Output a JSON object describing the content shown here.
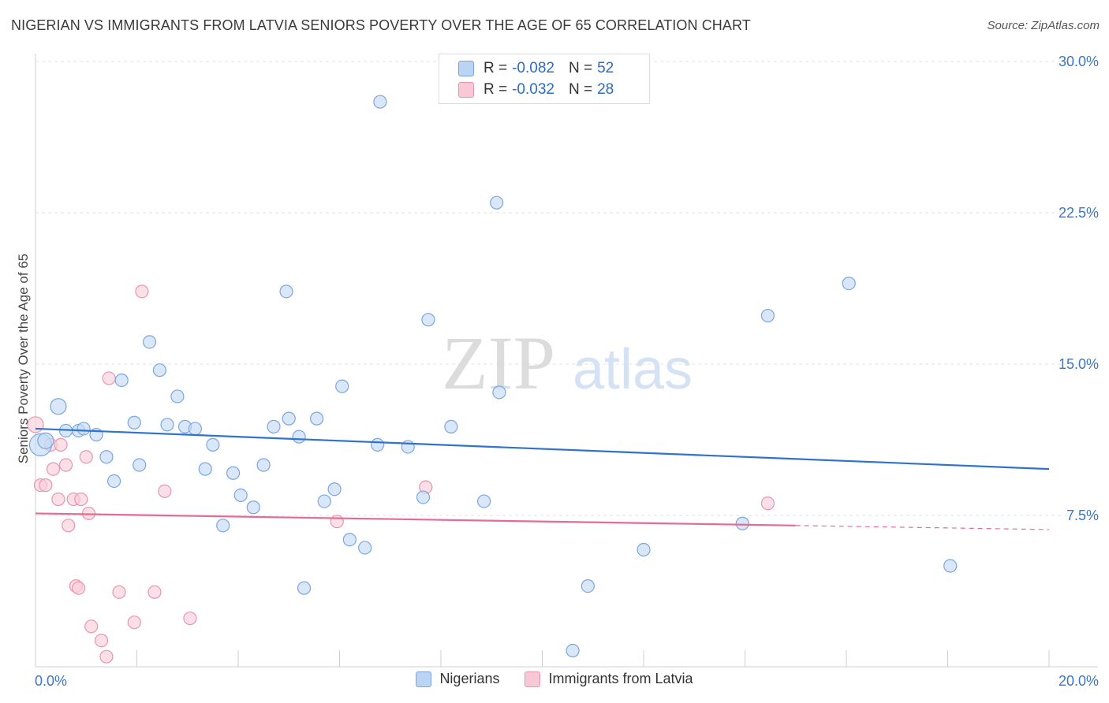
{
  "title": "NIGERIAN VS IMMIGRANTS FROM LATVIA SENIORS POVERTY OVER THE AGE OF 65 CORRELATION CHART",
  "source": "Source: ZipAtlas.com",
  "watermark": {
    "zip": "ZIP",
    "atlas": "atlas"
  },
  "legend": {
    "series": [
      {
        "r_label": "R =",
        "r_value": "-0.082",
        "n_label": "N =",
        "n_value": "52",
        "fill": "#bcd4f4",
        "stroke": "#7aa6e0"
      },
      {
        "r_label": "R =",
        "r_value": "-0.032",
        "n_label": "N =",
        "n_value": "28",
        "fill": "#f9c8d6",
        "stroke": "#eb94ae"
      }
    ]
  },
  "chart_data": {
    "type": "scatter",
    "title": "NIGERIAN VS IMMIGRANTS FROM LATVIA SENIORS POVERTY OVER THE AGE OF 65 CORRELATION CHART",
    "xlabel": "",
    "ylabel": "Seniors Poverty Over the Age of 65",
    "xlim": [
      0,
      20
    ],
    "ylim": [
      0,
      30
    ],
    "x_tick_labels": [
      "0.0%",
      "20.0%"
    ],
    "y_tick_values": [
      7.5,
      15.0,
      22.5,
      30.0
    ],
    "y_tick_labels": [
      "7.5%",
      "15.0%",
      "22.5%",
      "30.0%"
    ],
    "grid": true,
    "series": [
      {
        "name": "Nigerians",
        "color": "#7aa6e0",
        "fill": "#c5daf5",
        "trend_color": "#2f72cf",
        "trend": {
          "x0": 0,
          "y0": 11.8,
          "x1": 20,
          "y1": 9.8,
          "solid_until": 20
        },
        "points": [
          [
            0.1,
            11.0,
            3
          ],
          [
            0.2,
            11.2,
            2
          ],
          [
            0.45,
            12.9,
            2
          ],
          [
            0.6,
            11.7,
            1
          ],
          [
            0.85,
            11.7,
            1
          ],
          [
            0.95,
            11.8,
            1
          ],
          [
            1.2,
            11.5,
            1
          ],
          [
            1.4,
            10.4,
            1
          ],
          [
            1.55,
            9.2,
            1
          ],
          [
            1.7,
            14.2,
            1
          ],
          [
            1.95,
            12.1,
            1
          ],
          [
            2.05,
            10.0,
            1
          ],
          [
            2.25,
            16.1,
            1
          ],
          [
            2.45,
            14.7,
            1
          ],
          [
            2.6,
            12.0,
            1
          ],
          [
            2.8,
            13.4,
            1
          ],
          [
            2.95,
            11.9,
            1
          ],
          [
            3.15,
            11.8,
            1
          ],
          [
            3.35,
            9.8,
            1
          ],
          [
            3.5,
            11.0,
            1
          ],
          [
            3.7,
            7.0,
            1
          ],
          [
            3.9,
            9.6,
            1
          ],
          [
            4.05,
            8.5,
            1
          ],
          [
            4.3,
            7.9,
            1
          ],
          [
            4.5,
            10.0,
            1
          ],
          [
            4.7,
            11.9,
            1
          ],
          [
            4.95,
            18.6,
            1
          ],
          [
            5.0,
            12.3,
            1
          ],
          [
            5.2,
            11.4,
            1
          ],
          [
            5.3,
            3.9,
            1
          ],
          [
            5.55,
            12.3,
            1
          ],
          [
            5.7,
            8.2,
            1
          ],
          [
            5.9,
            8.8,
            1
          ],
          [
            6.05,
            13.9,
            1
          ],
          [
            6.2,
            6.3,
            1
          ],
          [
            6.5,
            5.9,
            1
          ],
          [
            6.75,
            11.0,
            1
          ],
          [
            6.8,
            28.0,
            1
          ],
          [
            7.35,
            10.9,
            1
          ],
          [
            7.65,
            8.4,
            1
          ],
          [
            7.75,
            17.2,
            1
          ],
          [
            8.2,
            11.9,
            1
          ],
          [
            8.85,
            8.2,
            1
          ],
          [
            9.1,
            23.0,
            1
          ],
          [
            9.15,
            13.6,
            1
          ],
          [
            10.6,
            0.8,
            1
          ],
          [
            10.9,
            4.0,
            1
          ],
          [
            12.0,
            5.8,
            1
          ],
          [
            13.95,
            7.1,
            1
          ],
          [
            14.45,
            17.4,
            1
          ],
          [
            16.05,
            19.0,
            1
          ],
          [
            18.05,
            5.0,
            1
          ]
        ]
      },
      {
        "name": "Immigrants from Latvia",
        "color": "#eb94ae",
        "fill": "#f9cfdc",
        "trend_color": "#e56b92",
        "trend": {
          "x0": 0,
          "y0": 7.6,
          "x1": 20,
          "y1": 6.8,
          "solid_until": 15.0
        },
        "points": [
          [
            0.0,
            12.0,
            2
          ],
          [
            0.1,
            9.0,
            1
          ],
          [
            0.2,
            9.0,
            1
          ],
          [
            0.3,
            11.0,
            1
          ],
          [
            0.35,
            9.8,
            1
          ],
          [
            0.45,
            8.3,
            1
          ],
          [
            0.5,
            11.0,
            1
          ],
          [
            0.6,
            10.0,
            1
          ],
          [
            0.65,
            7.0,
            1
          ],
          [
            0.75,
            8.3,
            1
          ],
          [
            0.8,
            4.0,
            1
          ],
          [
            0.85,
            3.9,
            1
          ],
          [
            0.9,
            8.3,
            1
          ],
          [
            1.0,
            10.4,
            1
          ],
          [
            1.05,
            7.6,
            1
          ],
          [
            1.1,
            2.0,
            1
          ],
          [
            1.3,
            1.3,
            1
          ],
          [
            1.4,
            0.5,
            1
          ],
          [
            1.45,
            14.3,
            1
          ],
          [
            1.65,
            3.7,
            1
          ],
          [
            1.95,
            2.2,
            1
          ],
          [
            2.1,
            18.6,
            1
          ],
          [
            2.35,
            3.7,
            1
          ],
          [
            2.55,
            8.7,
            1
          ],
          [
            3.05,
            2.4,
            1
          ],
          [
            5.95,
            7.2,
            1
          ],
          [
            7.7,
            8.9,
            1
          ],
          [
            14.45,
            8.1,
            1
          ]
        ]
      }
    ]
  }
}
